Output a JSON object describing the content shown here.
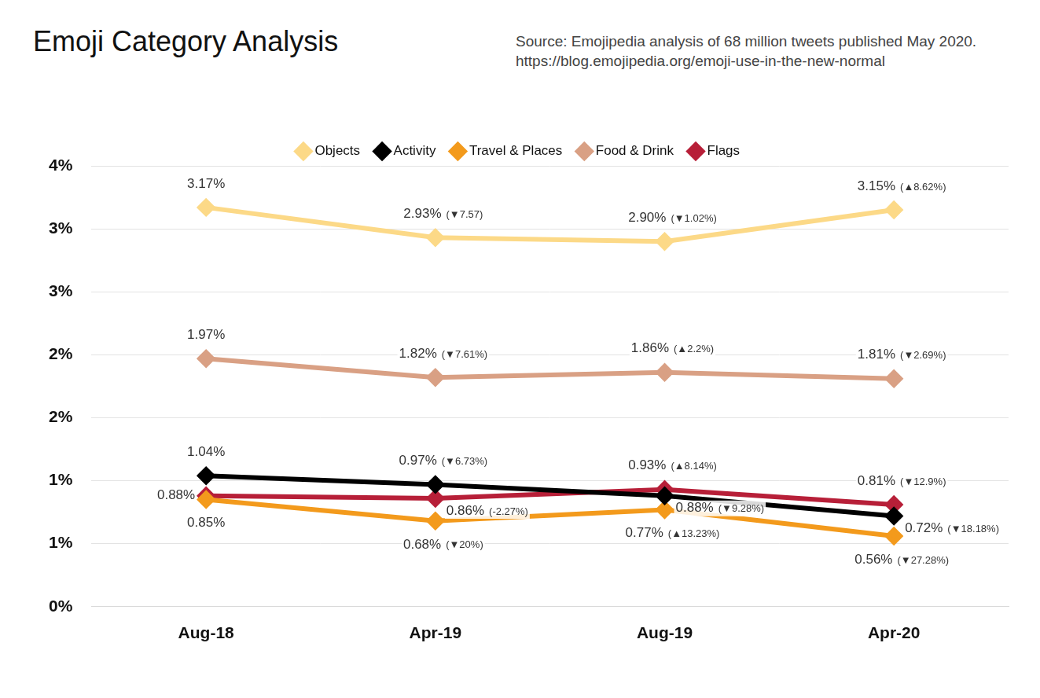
{
  "chart_data": {
    "type": "line",
    "title": "Emoji Category Analysis",
    "subtitle": [
      "Source: Emojipedia analysis of 68 million tweets published May 2020.",
      "https://blog.emojipedia.org/emoji-use-in-the-new-normal"
    ],
    "categories": [
      "Aug-18",
      "Apr-19",
      "Aug-19",
      "Apr-20"
    ],
    "series": [
      {
        "name": "Objects",
        "color": "#fcd987",
        "marker": "diamond",
        "values": [
          3.17,
          2.93,
          2.9,
          3.15
        ],
        "value_labels": [
          "3.17%",
          "2.93%",
          "2.90%",
          "3.15%"
        ],
        "change_labels": [
          null,
          "(▼7.57)",
          "(▼1.02%)",
          "(▲8.62%)"
        ]
      },
      {
        "name": "Activity",
        "color": "#000000",
        "marker": "diamond",
        "values": [
          1.04,
          0.97,
          0.88,
          0.72
        ],
        "value_labels": [
          "1.04%",
          "0.97%",
          "0.88%",
          "0.72%"
        ],
        "change_labels": [
          null,
          "(▼6.73%)",
          "(▼9.28%)",
          "(▼18.18%)"
        ]
      },
      {
        "name": "Travel & Places",
        "color": "#f39a1c",
        "marker": "diamond",
        "values": [
          0.85,
          0.68,
          0.77,
          0.56
        ],
        "value_labels": [
          "0.85%",
          "0.68%",
          "0.77%",
          "0.56%"
        ],
        "change_labels": [
          null,
          "(▼20%)",
          "(▲13.23%)",
          "(▼27.28%)"
        ]
      },
      {
        "name": "Food & Drink",
        "color": "#d9a084",
        "marker": "diamond",
        "values": [
          1.97,
          1.82,
          1.86,
          1.81
        ],
        "value_labels": [
          "1.97%",
          "1.82%",
          "1.86%",
          "1.81%"
        ],
        "change_labels": [
          null,
          "(▼7.61%)",
          "(▲2.2%)",
          "(▼2.69%)"
        ]
      },
      {
        "name": "Flags",
        "color": "#b71f38",
        "marker": "diamond",
        "values": [
          0.88,
          0.86,
          0.93,
          0.81
        ],
        "value_labels": [
          "0.88%",
          "0.86%",
          "0.93%",
          "0.81%"
        ],
        "change_labels": [
          null,
          "(-2.27%)",
          "(▲8.14%)",
          "(▼12.9%)"
        ]
      }
    ],
    "ylim": [
      0,
      3.5
    ],
    "yticks": [
      {
        "value": 0,
        "label": "0%"
      },
      {
        "value": 0.5,
        "label": "1%"
      },
      {
        "value": 1,
        "label": "1%"
      },
      {
        "value": 1.5,
        "label": "2%"
      },
      {
        "value": 2,
        "label": "2%"
      },
      {
        "value": 2.5,
        "label": "3%"
      },
      {
        "value": 3,
        "label": "3%"
      },
      {
        "value": 3.5,
        "label": "4%"
      }
    ],
    "grid": true,
    "legend": "top",
    "data_labels": true
  }
}
